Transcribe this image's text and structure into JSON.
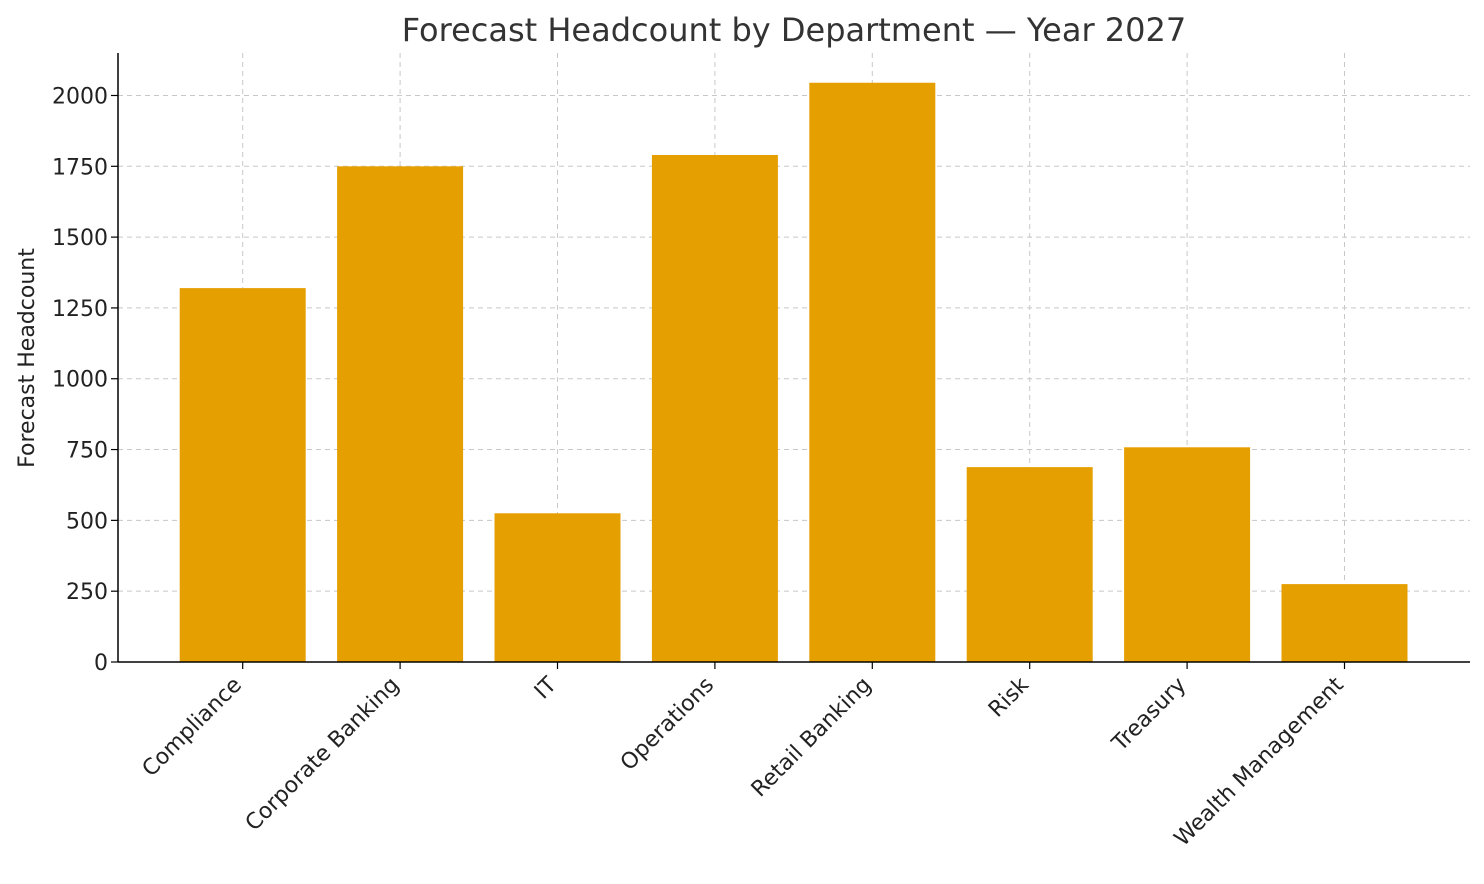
{
  "chart_data": {
    "type": "bar",
    "title": "Forecast Headcount by Department — Year 2027",
    "xlabel": "",
    "ylabel": "Forecast Headcount",
    "categories": [
      "Compliance",
      "Corporate Banking",
      "IT",
      "Operations",
      "Retail Banking",
      "Risk",
      "Treasury",
      "Wealth Management"
    ],
    "values": [
      1320,
      1750,
      525,
      1790,
      2045,
      688,
      758,
      275
    ],
    "ylim": [
      0,
      2150
    ],
    "yticks": [
      0,
      250,
      500,
      750,
      1000,
      1250,
      1500,
      1750,
      2000
    ],
    "grid": true,
    "bar_color": "#E69F00"
  }
}
